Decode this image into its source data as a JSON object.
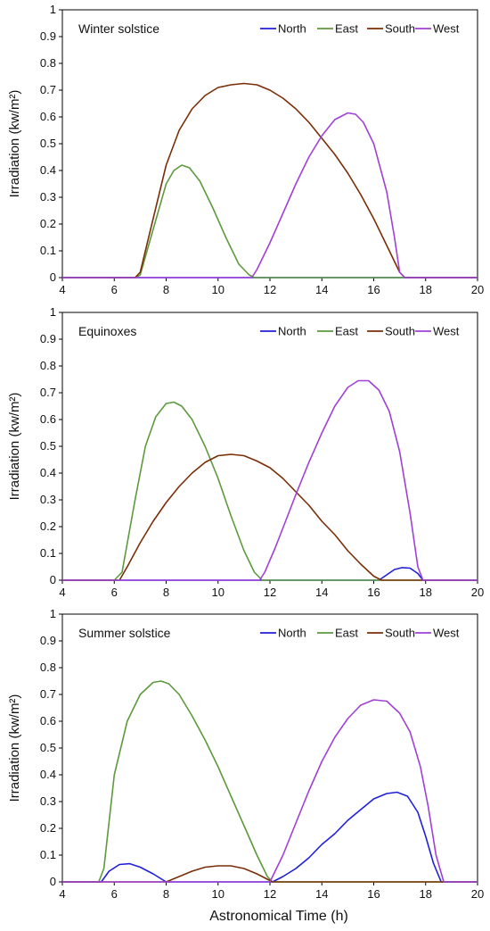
{
  "figure": {
    "xlabel": "Astronomical Time (h)"
  },
  "chart_data": [
    {
      "type": "line",
      "title": "Winter solstice",
      "xlabel": "",
      "ylabel": "Irradiation (kw/m²)",
      "xlim": [
        4,
        20
      ],
      "ylim": [
        0,
        1
      ],
      "xticks": [
        4,
        6,
        8,
        10,
        12,
        14,
        16,
        18,
        20
      ],
      "yticks": [
        0,
        0.1,
        0.2,
        0.3,
        0.4,
        0.5,
        0.6,
        0.7,
        0.8,
        0.9,
        1
      ],
      "ytick_labels": [
        "0",
        "0.1",
        "0.2",
        "0.3",
        "0.4",
        "0.5",
        "0.6",
        "0.7",
        "0.8",
        "0.9",
        "1"
      ],
      "legend_position": "top-right",
      "grid": false,
      "series": [
        {
          "name": "North",
          "color": "#2020d8",
          "x": [
            4,
            20
          ],
          "y": [
            0,
            0
          ]
        },
        {
          "name": "East",
          "color": "#5c9a3c",
          "x": [
            4,
            6.8,
            7.0,
            7.5,
            8.0,
            8.3,
            8.6,
            8.9,
            9.3,
            9.8,
            10.3,
            10.8,
            11.2,
            11.4,
            12,
            20
          ],
          "y": [
            0,
            0,
            0.01,
            0.18,
            0.35,
            0.4,
            0.42,
            0.41,
            0.36,
            0.26,
            0.15,
            0.05,
            0.01,
            0,
            0,
            0
          ]
        },
        {
          "name": "South",
          "color": "#7a2e08",
          "x": [
            4,
            6.8,
            7.0,
            7.5,
            8.0,
            8.5,
            9.0,
            9.5,
            10.0,
            10.5,
            11.0,
            11.5,
            12.0,
            12.5,
            13.0,
            13.5,
            14.0,
            14.5,
            15.0,
            15.5,
            16.0,
            16.5,
            17.0,
            17.2,
            20
          ],
          "y": [
            0,
            0,
            0.02,
            0.22,
            0.42,
            0.55,
            0.63,
            0.68,
            0.71,
            0.72,
            0.725,
            0.72,
            0.7,
            0.67,
            0.63,
            0.58,
            0.52,
            0.46,
            0.39,
            0.31,
            0.22,
            0.12,
            0.02,
            0,
            0
          ]
        },
        {
          "name": "West",
          "color": "#a040d8",
          "x": [
            4,
            11.3,
            11.5,
            12.0,
            12.5,
            13.0,
            13.5,
            14.0,
            14.5,
            15.0,
            15.3,
            15.6,
            16.0,
            16.5,
            16.8,
            17.0,
            17.2,
            20
          ],
          "y": [
            0,
            0,
            0.03,
            0.13,
            0.24,
            0.35,
            0.45,
            0.53,
            0.59,
            0.615,
            0.61,
            0.58,
            0.5,
            0.32,
            0.15,
            0.02,
            0,
            0
          ]
        }
      ]
    },
    {
      "type": "line",
      "title": "Equinoxes",
      "xlabel": "",
      "ylabel": "Irradiation (kw/m²)",
      "xlim": [
        4,
        20
      ],
      "ylim": [
        0,
        1
      ],
      "xticks": [
        4,
        6,
        8,
        10,
        12,
        14,
        16,
        18,
        20
      ],
      "yticks": [
        0,
        0.1,
        0.2,
        0.3,
        0.4,
        0.5,
        0.6,
        0.7,
        0.8,
        0.9,
        1
      ],
      "ytick_labels": [
        "0",
        "0.1",
        "0.2",
        "0.3",
        "0.4",
        "0.5",
        "0.6",
        "0.7",
        "0.8",
        "0.9",
        "1"
      ],
      "legend_position": "top-right",
      "grid": false,
      "series": [
        {
          "name": "North",
          "color": "#2020d8",
          "x": [
            4,
            16.2,
            16.5,
            16.8,
            17.1,
            17.4,
            17.7,
            17.9,
            20
          ],
          "y": [
            0,
            0,
            0.02,
            0.04,
            0.047,
            0.045,
            0.025,
            0,
            0
          ]
        },
        {
          "name": "East",
          "color": "#5c9a3c",
          "x": [
            4,
            6.0,
            6.3,
            6.8,
            7.2,
            7.6,
            8.0,
            8.3,
            8.6,
            9.0,
            9.5,
            10.0,
            10.5,
            11.0,
            11.4,
            11.7,
            20
          ],
          "y": [
            0,
            0,
            0.03,
            0.3,
            0.5,
            0.61,
            0.66,
            0.665,
            0.65,
            0.6,
            0.5,
            0.38,
            0.24,
            0.11,
            0.03,
            0,
            0
          ]
        },
        {
          "name": "South",
          "color": "#7a2e08",
          "x": [
            4,
            6.2,
            6.5,
            7.0,
            7.5,
            8.0,
            8.5,
            9.0,
            9.5,
            10.0,
            10.5,
            11.0,
            11.5,
            12.0,
            12.5,
            13.0,
            13.5,
            14.0,
            14.5,
            15.0,
            15.5,
            16.0,
            16.3,
            20
          ],
          "y": [
            0,
            0,
            0.05,
            0.14,
            0.22,
            0.29,
            0.35,
            0.4,
            0.44,
            0.465,
            0.47,
            0.465,
            0.445,
            0.42,
            0.38,
            0.33,
            0.28,
            0.22,
            0.17,
            0.11,
            0.06,
            0.015,
            0,
            0
          ]
        },
        {
          "name": "West",
          "color": "#a040d8",
          "x": [
            4,
            11.6,
            11.8,
            12.2,
            12.6,
            13.0,
            13.5,
            14.0,
            14.5,
            15.0,
            15.4,
            15.8,
            16.2,
            16.6,
            17.0,
            17.4,
            17.7,
            17.9,
            20
          ],
          "y": [
            0,
            0,
            0.03,
            0.12,
            0.22,
            0.32,
            0.44,
            0.55,
            0.65,
            0.72,
            0.745,
            0.745,
            0.71,
            0.63,
            0.48,
            0.25,
            0.05,
            0,
            0
          ]
        }
      ]
    },
    {
      "type": "line",
      "title": "Summer solstice",
      "xlabel": "Astronomical Time (h)",
      "ylabel": "Irradiation (kw/m²)",
      "xlim": [
        4,
        20
      ],
      "ylim": [
        0,
        1
      ],
      "xticks": [
        4,
        6,
        8,
        10,
        12,
        14,
        16,
        18,
        20
      ],
      "yticks": [
        0,
        0.1,
        0.2,
        0.3,
        0.4,
        0.5,
        0.6,
        0.7,
        0.8,
        0.9,
        1
      ],
      "ytick_labels": [
        "0",
        "0.1",
        "0.2",
        "0.3",
        "0.4",
        "0.5",
        "0.6",
        "0.7",
        "0.8",
        "0.9",
        "1"
      ],
      "legend_position": "top-right",
      "grid": false,
      "series": [
        {
          "name": "North",
          "color": "#2020d8",
          "x": [
            4,
            5.5,
            5.8,
            6.2,
            6.6,
            7.0,
            7.5,
            8.0,
            12.1,
            12.5,
            13.0,
            13.5,
            14.0,
            14.5,
            15.0,
            15.5,
            16.0,
            16.5,
            16.9,
            17.3,
            17.7,
            18.0,
            18.3,
            18.6,
            20
          ],
          "y": [
            0,
            0,
            0.04,
            0.065,
            0.068,
            0.055,
            0.03,
            0,
            0,
            0.02,
            0.05,
            0.09,
            0.14,
            0.18,
            0.23,
            0.27,
            0.31,
            0.33,
            0.335,
            0.32,
            0.26,
            0.17,
            0.07,
            0,
            0
          ]
        },
        {
          "name": "East",
          "color": "#5c9a3c",
          "x": [
            4,
            5.4,
            5.6,
            6.0,
            6.5,
            7.0,
            7.5,
            7.8,
            8.1,
            8.5,
            9.0,
            9.5,
            10.0,
            10.5,
            11.0,
            11.5,
            11.9,
            12.1,
            20
          ],
          "y": [
            0,
            0,
            0.05,
            0.4,
            0.6,
            0.7,
            0.745,
            0.75,
            0.74,
            0.7,
            0.62,
            0.53,
            0.43,
            0.32,
            0.21,
            0.1,
            0.02,
            0,
            0
          ]
        },
        {
          "name": "South",
          "color": "#7a2e08",
          "x": [
            4,
            8.0,
            8.5,
            9.0,
            9.5,
            10.0,
            10.5,
            11.0,
            11.5,
            12.0,
            12.1,
            20
          ],
          "y": [
            0,
            0,
            0.02,
            0.04,
            0.055,
            0.06,
            0.06,
            0.05,
            0.03,
            0.005,
            0,
            0
          ]
        },
        {
          "name": "West",
          "color": "#a040d8",
          "x": [
            4,
            12.0,
            12.5,
            13.0,
            13.5,
            14.0,
            14.5,
            15.0,
            15.5,
            16.0,
            16.5,
            17.0,
            17.4,
            17.8,
            18.1,
            18.4,
            18.7,
            20
          ],
          "y": [
            0,
            0,
            0.1,
            0.22,
            0.34,
            0.45,
            0.54,
            0.61,
            0.66,
            0.68,
            0.675,
            0.63,
            0.56,
            0.43,
            0.28,
            0.1,
            0,
            0
          ]
        }
      ]
    }
  ]
}
